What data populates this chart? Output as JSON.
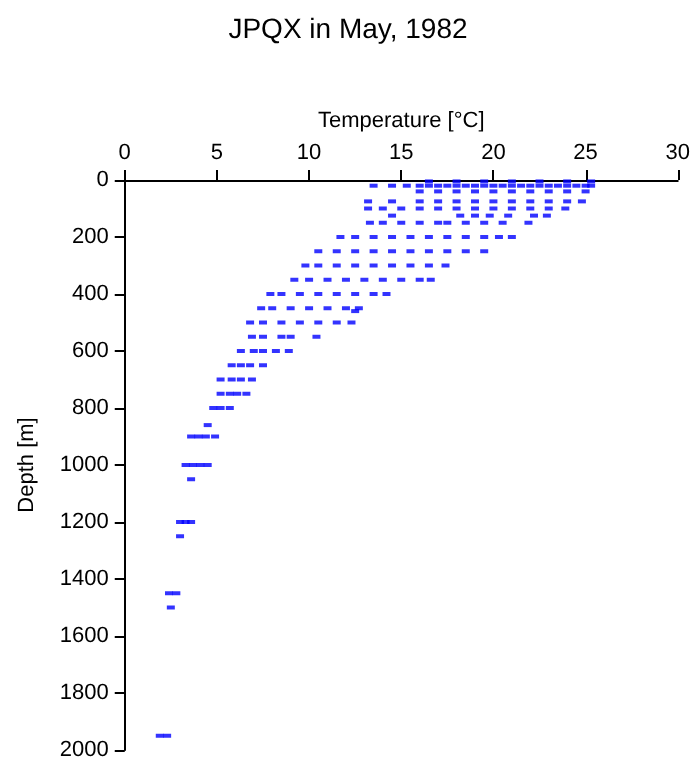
{
  "chart_data": {
    "type": "scatter",
    "title": "JPQX in May, 1982",
    "xlabel": "Temperature [°C]",
    "ylabel": "Depth [m]",
    "x": [
      16.5,
      18,
      19.5,
      21,
      22.5,
      24,
      25.3,
      13.5,
      14.5,
      15.3,
      16,
      16.5,
      17,
      17.5,
      18,
      18.5,
      19,
      19.5,
      20,
      20.5,
      21,
      21.5,
      22,
      22.5,
      23,
      23.5,
      24,
      24.5,
      25,
      25.3,
      16,
      17,
      18,
      19,
      20,
      21,
      22,
      23,
      24,
      25,
      13.2,
      14.5,
      16,
      17,
      18,
      19,
      20,
      21,
      22,
      23,
      24,
      24.8,
      13.2,
      14,
      15,
      16,
      17,
      18,
      19,
      20,
      21,
      22,
      23,
      23.9,
      14.5,
      18.2,
      19,
      19.8,
      20.8,
      22.2,
      22.9,
      13.3,
      14,
      15,
      16,
      17,
      17.5,
      18.5,
      19.5,
      20.5,
      21.9,
      11.7,
      12.5,
      13.5,
      14.5,
      15.5,
      16.5,
      17.5,
      18.5,
      19.5,
      20.3,
      21,
      10.5,
      11.5,
      12.5,
      13.5,
      14.5,
      15.5,
      16.5,
      17.5,
      18.5,
      19.5,
      9.8,
      10.5,
      11.5,
      12.5,
      13.5,
      14.5,
      15.5,
      16.5,
      17.4,
      9.2,
      10,
      11,
      12,
      13,
      14,
      15,
      16,
      16.6,
      7.9,
      8.5,
      9.5,
      10.5,
      11.5,
      12.5,
      13.5,
      14.2,
      7.4,
      8,
      9,
      10,
      11,
      12,
      12.7,
      12.5,
      6.8,
      7.5,
      8.5,
      9.5,
      10.5,
      11.5,
      12.3,
      6.9,
      7.5,
      8.5,
      9,
      10.4,
      6.3,
      7,
      7.5,
      8.2,
      8.9,
      5.8,
      6.3,
      6.8,
      7.5,
      5.2,
      5.8,
      6.3,
      6.9,
      5.2,
      5.7,
      6.1,
      6.6,
      4.8,
      5.2,
      5.7,
      4.5,
      3.6,
      4,
      4.4,
      4.9,
      3.3,
      3.7,
      4.1,
      4.5,
      3.6,
      3,
      3.3,
      3.6,
      3,
      2.4,
      2.8,
      2.5,
      1.9,
      2.3
    ],
    "values": [
      5,
      5,
      5,
      5,
      5,
      5,
      5,
      20,
      20,
      20,
      20,
      20,
      20,
      20,
      20,
      20,
      20,
      20,
      20,
      20,
      20,
      20,
      20,
      20,
      20,
      20,
      20,
      20,
      20,
      20,
      40,
      40,
      40,
      40,
      40,
      40,
      40,
      40,
      40,
      40,
      75,
      75,
      75,
      75,
      75,
      75,
      75,
      75,
      75,
      75,
      75,
      75,
      100,
      100,
      100,
      100,
      100,
      100,
      100,
      100,
      100,
      100,
      100,
      100,
      125,
      125,
      125,
      125,
      125,
      125,
      125,
      150,
      150,
      150,
      150,
      150,
      150,
      150,
      150,
      150,
      150,
      200,
      200,
      200,
      200,
      200,
      200,
      200,
      200,
      200,
      200,
      200,
      250,
      250,
      250,
      250,
      250,
      250,
      250,
      250,
      250,
      250,
      300,
      300,
      300,
      300,
      300,
      300,
      300,
      300,
      300,
      350,
      350,
      350,
      350,
      350,
      350,
      350,
      350,
      350,
      400,
      400,
      400,
      400,
      400,
      400,
      400,
      400,
      450,
      450,
      450,
      450,
      450,
      450,
      450,
      460,
      500,
      500,
      500,
      500,
      500,
      500,
      500,
      550,
      550,
      550,
      550,
      550,
      600,
      600,
      600,
      600,
      600,
      650,
      650,
      650,
      650,
      700,
      700,
      700,
      700,
      750,
      750,
      750,
      750,
      800,
      800,
      800,
      860,
      900,
      900,
      900,
      900,
      1000,
      1000,
      1000,
      1000,
      1050,
      1200,
      1200,
      1200,
      1250,
      1450,
      1450,
      1500,
      1950,
      1950
    ],
    "color": "#0000ff",
    "marker": "square",
    "xlim": [
      0,
      30
    ],
    "xticks": [
      0,
      5,
      10,
      15,
      20,
      25,
      30
    ],
    "ylim": [
      2000,
      0
    ],
    "yticks": [
      0,
      200,
      400,
      600,
      800,
      1000,
      1200,
      1400,
      1600,
      1800,
      2000
    ],
    "grid": false
  }
}
